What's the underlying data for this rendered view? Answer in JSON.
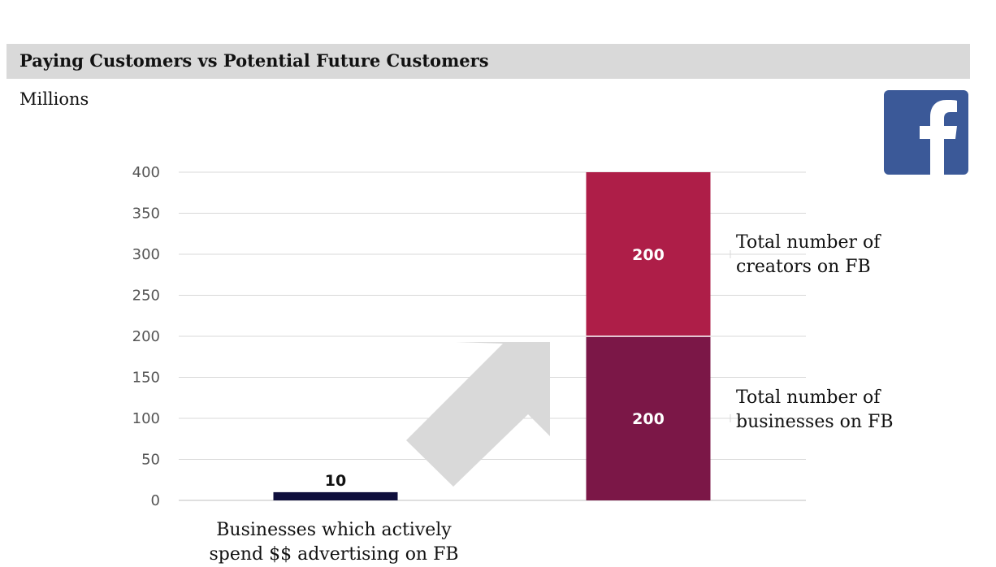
{
  "title": "Paying Customers vs Potential Future Customers",
  "units_label": "Millions",
  "logo_icon": "facebook-logo-icon",
  "colors": {
    "title_bar": "#d9d9d9",
    "paying_bar": "#0f0f3c",
    "businesses_segment": "#7b1747",
    "creators_segment": "#ae1e48",
    "arrow": "#d9d9d9",
    "logo": "#3b5998"
  },
  "chart_data": {
    "type": "bar",
    "stacked": true,
    "title": "Paying Customers vs Potential Future Customers",
    "ylabel": "Millions",
    "ylim": [
      0,
      400
    ],
    "yticks": [
      0,
      50,
      100,
      150,
      200,
      250,
      300,
      350,
      400
    ],
    "yticks_labels": [
      "0",
      "50",
      "100",
      "150",
      "200",
      "250",
      "300",
      "350",
      "400"
    ],
    "grid": true,
    "bars": [
      {
        "category": "Businesses which actively spend $$ advertising on FB",
        "segments": [
          {
            "name": "",
            "value": 10,
            "label": "10",
            "color": "#0f0f3c"
          }
        ]
      },
      {
        "category": "",
        "segments": [
          {
            "name": "Total number of businesses on FB",
            "value": 200,
            "label": "200",
            "color": "#7b1747"
          },
          {
            "name": "Total number of creators on FB",
            "value": 200,
            "label": "200",
            "color": "#ae1e48"
          }
        ]
      }
    ],
    "annotations": [
      {
        "text_lines": [
          "Total number of",
          "creators on FB"
        ],
        "points_to": "creators"
      },
      {
        "text_lines": [
          "Total number of",
          "businesses on FB"
        ],
        "points_to": "businesses"
      }
    ],
    "arrow": "up-right arrow from paying customers to potential customers"
  },
  "category_label_lines": [
    "Businesses which actively",
    "spend $$ advertising on FB"
  ]
}
